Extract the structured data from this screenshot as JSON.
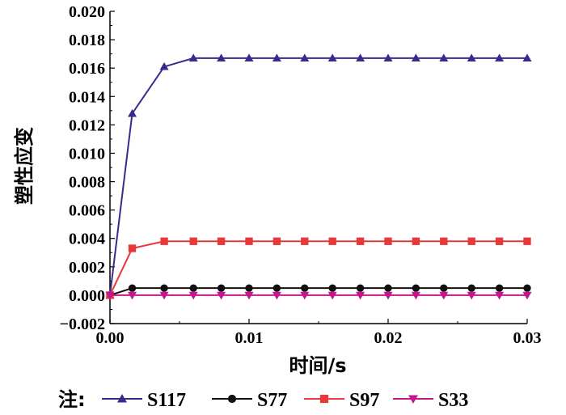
{
  "chart_data": {
    "type": "line",
    "xlabel": "时间/s",
    "ylabel": "塑性应变",
    "xlim": [
      0,
      0.03
    ],
    "ylim": [
      -0.002,
      0.02
    ],
    "x_ticks": [
      "0.00",
      "0.01",
      "0.02",
      "0.03"
    ],
    "y_ticks": [
      "−0.002",
      "0.000",
      "0.002",
      "0.004",
      "0.006",
      "0.008",
      "0.010",
      "0.012",
      "0.014",
      "0.016",
      "0.018",
      "0.020"
    ],
    "legend_prefix": "注:",
    "legend_position": "bottom",
    "x": [
      0,
      0.0016,
      0.0039,
      0.006,
      0.008,
      0.01,
      0.012,
      0.014,
      0.016,
      0.018,
      0.02,
      0.022,
      0.024,
      0.026,
      0.028,
      0.03
    ],
    "series": [
      {
        "name": "S117",
        "color": "#3a2a8c",
        "marker": "triangle-up",
        "values": [
          0,
          0.0128,
          0.0161,
          0.0167,
          0.0167,
          0.0167,
          0.0167,
          0.0167,
          0.0167,
          0.0167,
          0.0167,
          0.0167,
          0.0167,
          0.0167,
          0.0167,
          0.0167
        ]
      },
      {
        "name": "S77",
        "color": "#111111",
        "marker": "circle",
        "values": [
          0,
          0.0005,
          0.0005,
          0.0005,
          0.0005,
          0.0005,
          0.0005,
          0.0005,
          0.0005,
          0.0005,
          0.0005,
          0.0005,
          0.0005,
          0.0005,
          0.0005,
          0.0005
        ]
      },
      {
        "name": "S97",
        "color": "#e8383a",
        "marker": "square",
        "values": [
          0,
          0.0033,
          0.0038,
          0.0038,
          0.0038,
          0.0038,
          0.0038,
          0.0038,
          0.0038,
          0.0038,
          0.0038,
          0.0038,
          0.0038,
          0.0038,
          0.0038,
          0.0038
        ]
      },
      {
        "name": "S33",
        "color": "#c2178f",
        "marker": "triangle-down",
        "values": [
          0,
          0,
          0,
          0,
          0,
          0,
          0,
          0,
          0,
          0,
          0,
          0,
          0,
          0,
          0,
          0
        ]
      }
    ]
  }
}
